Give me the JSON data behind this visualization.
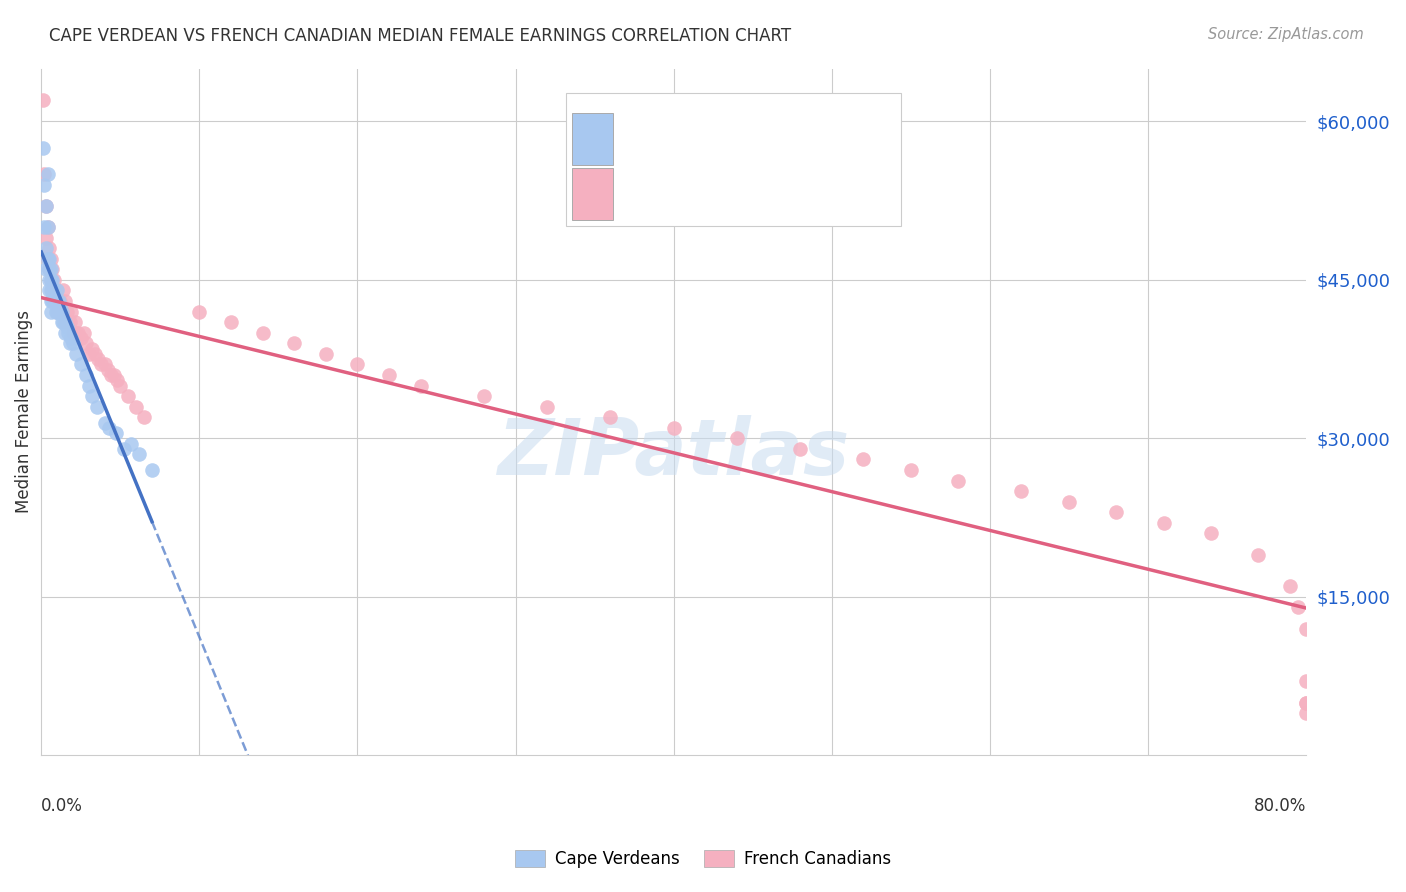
{
  "title": "CAPE VERDEAN VS FRENCH CANADIAN MEDIAN FEMALE EARNINGS CORRELATION CHART",
  "source": "Source: ZipAtlas.com",
  "ylabel": "Median Female Earnings",
  "ytick_labels": [
    "$60,000",
    "$45,000",
    "$30,000",
    "$15,000"
  ],
  "ytick_values": [
    60000,
    45000,
    30000,
    15000
  ],
  "ymin": 0,
  "ymax": 65000,
  "xmin": 0.0,
  "xmax": 0.8,
  "blue_color": "#A8C8F0",
  "pink_color": "#F5B0C0",
  "blue_line_color": "#4472C4",
  "pink_line_color": "#E06080",
  "watermark": "ZIPatlas",
  "blue_x": [
    0.001,
    0.002,
    0.002,
    0.003,
    0.003,
    0.003,
    0.004,
    0.004,
    0.004,
    0.005,
    0.005,
    0.005,
    0.005,
    0.006,
    0.006,
    0.006,
    0.006,
    0.006,
    0.007,
    0.007,
    0.007,
    0.008,
    0.008,
    0.009,
    0.009,
    0.01,
    0.01,
    0.01,
    0.011,
    0.011,
    0.012,
    0.013,
    0.013,
    0.014,
    0.015,
    0.015,
    0.016,
    0.017,
    0.018,
    0.019,
    0.02,
    0.022,
    0.025,
    0.028,
    0.03,
    0.032,
    0.035,
    0.04,
    0.043,
    0.047,
    0.052,
    0.057,
    0.062,
    0.07
  ],
  "blue_y": [
    57500,
    54000,
    50000,
    52000,
    48000,
    46000,
    55000,
    50000,
    47000,
    47000,
    46000,
    45000,
    44000,
    46000,
    45000,
    44000,
    43000,
    42000,
    45000,
    44000,
    43000,
    44000,
    43000,
    43000,
    42000,
    44000,
    43000,
    42000,
    43000,
    42000,
    42500,
    42000,
    41000,
    41000,
    41000,
    40000,
    40500,
    40000,
    39000,
    39500,
    39000,
    38000,
    37000,
    36000,
    35000,
    34000,
    33000,
    31500,
    31000,
    30500,
    29000,
    29500,
    28500,
    27000
  ],
  "pink_x": [
    0.001,
    0.002,
    0.003,
    0.003,
    0.004,
    0.004,
    0.005,
    0.005,
    0.006,
    0.006,
    0.007,
    0.007,
    0.008,
    0.008,
    0.009,
    0.01,
    0.01,
    0.011,
    0.012,
    0.013,
    0.014,
    0.015,
    0.015,
    0.016,
    0.017,
    0.018,
    0.019,
    0.02,
    0.021,
    0.022,
    0.023,
    0.025,
    0.027,
    0.028,
    0.03,
    0.032,
    0.034,
    0.036,
    0.038,
    0.04,
    0.042,
    0.044,
    0.046,
    0.048,
    0.05,
    0.055,
    0.06,
    0.065,
    0.1,
    0.12,
    0.14,
    0.16,
    0.18,
    0.2,
    0.22,
    0.24,
    0.28,
    0.32,
    0.36,
    0.4,
    0.44,
    0.48,
    0.52,
    0.55,
    0.58,
    0.62,
    0.65,
    0.68,
    0.71,
    0.74,
    0.77,
    0.79,
    0.795,
    0.8,
    0.8,
    0.8,
    0.8,
    0.8
  ],
  "pink_y": [
    62000,
    55000,
    52000,
    49000,
    50000,
    47000,
    48000,
    46000,
    47000,
    45000,
    46000,
    44000,
    45000,
    43000,
    44000,
    43000,
    42000,
    43000,
    43000,
    42000,
    44000,
    43000,
    41000,
    42000,
    41000,
    41000,
    42000,
    40000,
    41000,
    40000,
    40000,
    39500,
    40000,
    39000,
    38000,
    38500,
    38000,
    37500,
    37000,
    37000,
    36500,
    36000,
    36000,
    35500,
    35000,
    34000,
    33000,
    32000,
    42000,
    41000,
    40000,
    39000,
    38000,
    37000,
    36000,
    35000,
    34000,
    33000,
    32000,
    31000,
    30000,
    29000,
    28000,
    27000,
    26000,
    25000,
    24000,
    23000,
    22000,
    21000,
    19000,
    16000,
    14000,
    12000,
    7000,
    5000,
    5000,
    4000
  ]
}
